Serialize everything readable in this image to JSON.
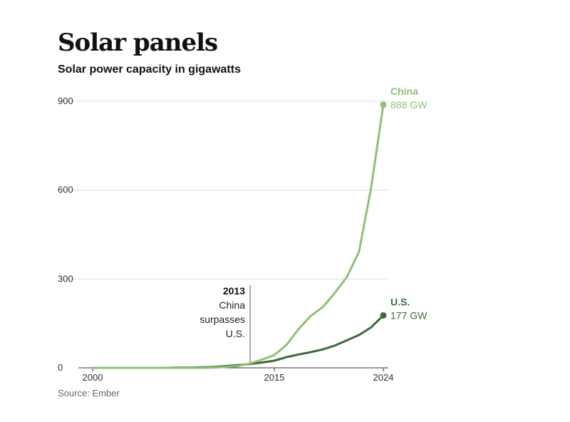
{
  "title": "Solar panels",
  "subtitle": "Solar power capacity in gigawatts",
  "source": "Source: Ember",
  "chart_data": {
    "type": "line",
    "ylim": [
      0,
      900
    ],
    "xlim": [
      2000,
      2024
    ],
    "yticks": [
      0,
      300,
      600,
      900
    ],
    "xticks": [
      "2000",
      "2015",
      "2024"
    ],
    "grid": true,
    "annotation": {
      "year_label": "2013",
      "x": 2013,
      "lines": [
        "China",
        "surpasses",
        "U.S."
      ]
    },
    "series": [
      {
        "name": "China",
        "end_label": "888 GW",
        "color": "#8fbf7a",
        "x": [
          2000,
          2001,
          2002,
          2003,
          2004,
          2005,
          2006,
          2007,
          2008,
          2009,
          2010,
          2011,
          2012,
          2013,
          2014,
          2015,
          2016,
          2017,
          2018,
          2019,
          2020,
          2021,
          2022,
          2023,
          2024
        ],
        "values": [
          0,
          0,
          0,
          0,
          0,
          0,
          0,
          0,
          0,
          0,
          1,
          3,
          6,
          15,
          28,
          43,
          77,
          131,
          175,
          205,
          253,
          307,
          393,
          610,
          888
        ]
      },
      {
        "name": "U.S.",
        "end_label": "177 GW",
        "color": "#3d6b3a",
        "x": [
          2000,
          2001,
          2002,
          2003,
          2004,
          2005,
          2006,
          2007,
          2008,
          2009,
          2010,
          2011,
          2012,
          2013,
          2014,
          2015,
          2016,
          2017,
          2018,
          2019,
          2020,
          2021,
          2022,
          2023,
          2024
        ],
        "values": [
          0,
          0,
          0,
          0,
          0,
          0,
          0,
          1,
          1,
          2,
          3,
          6,
          9,
          13,
          18,
          24,
          36,
          45,
          53,
          62,
          75,
          93,
          111,
          137,
          177
        ]
      }
    ]
  }
}
